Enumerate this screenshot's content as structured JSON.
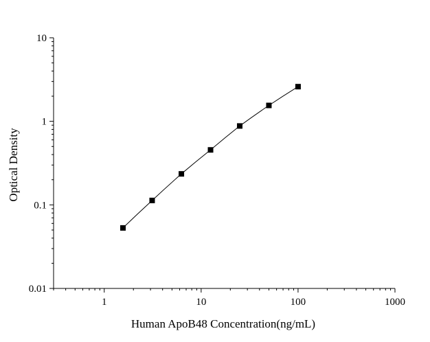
{
  "chart_data": {
    "type": "scatter",
    "title": "",
    "xlabel": "Human ApoB48 Concentration(ng/mL)",
    "ylabel": "Optical Density",
    "x_scale": "log",
    "y_scale": "log",
    "xlim": [
      0.3,
      1000
    ],
    "ylim": [
      0.01,
      10
    ],
    "x_ticks": [
      {
        "value": 1,
        "label": "1"
      },
      {
        "value": 10,
        "label": "10"
      },
      {
        "value": 100,
        "label": "100"
      },
      {
        "value": 1000,
        "label": "1000"
      }
    ],
    "y_ticks": [
      {
        "value": 0.01,
        "label": "0.01"
      },
      {
        "value": 0.1,
        "label": "0.1"
      },
      {
        "value": 1,
        "label": "1"
      },
      {
        "value": 10,
        "label": "10"
      }
    ],
    "grid": false,
    "legend": "none",
    "marker": "square",
    "fit_line": true,
    "series": [
      {
        "x": [
          1.56,
          3.12,
          6.25,
          12.5,
          25,
          50,
          100
        ],
        "y": [
          0.053,
          0.113,
          0.235,
          0.455,
          0.88,
          1.55,
          2.6
        ]
      }
    ],
    "colors": {
      "marker": "#000000",
      "line": "#000000",
      "axis": "#000000"
    }
  }
}
